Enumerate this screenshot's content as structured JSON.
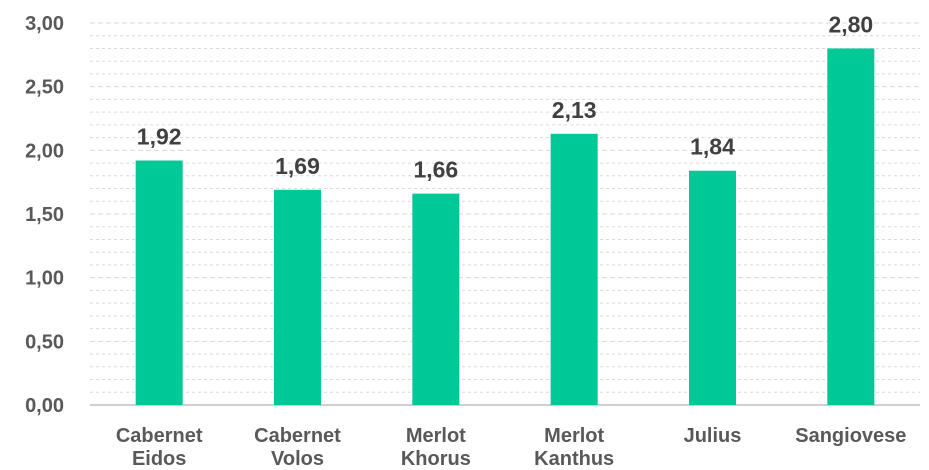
{
  "chart_data": {
    "type": "bar",
    "categories": [
      [
        "Cabernet",
        "Eidos"
      ],
      [
        "Cabernet",
        "Volos"
      ],
      [
        "Merlot",
        "Khorus"
      ],
      [
        "Merlot",
        "Kanthus"
      ],
      [
        "Julius"
      ],
      [
        "Sangiovese"
      ]
    ],
    "values": [
      1.92,
      1.69,
      1.66,
      2.13,
      1.84,
      2.8
    ],
    "data_labels": [
      "1,92",
      "1,69",
      "1,66",
      "2,13",
      "1,84",
      "2,80"
    ],
    "y_ticks": [
      {
        "value": 0.0,
        "label": "0,00"
      },
      {
        "value": 0.5,
        "label": "0,50"
      },
      {
        "value": 1.0,
        "label": "1,00"
      },
      {
        "value": 1.5,
        "label": "1,50"
      },
      {
        "value": 2.0,
        "label": "2,00"
      },
      {
        "value": 2.5,
        "label": "2,50"
      },
      {
        "value": 3.0,
        "label": "3,00"
      }
    ],
    "ylim": [
      0,
      3
    ],
    "title": "",
    "xlabel": "",
    "ylabel": "",
    "grid": "major and minor horizontal, dashed",
    "legend": "none",
    "colors": {
      "bar": "#00C896",
      "grid": "#D9D9D9",
      "axis": "#BFBFBF",
      "tick_text": "#595959",
      "label_text": "#404040"
    }
  }
}
